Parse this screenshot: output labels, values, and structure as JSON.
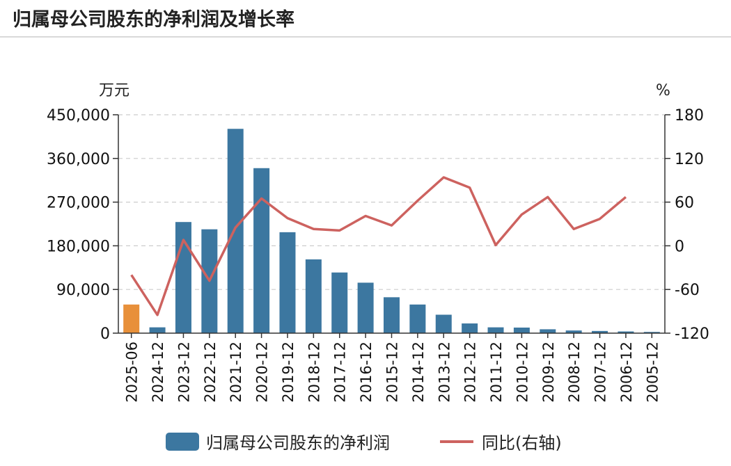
{
  "header": {
    "title": "归属母公司股东的净利润及增长率"
  },
  "chart_data": {
    "type": "bar+line",
    "title": "归属母公司股东的净利润及增长率",
    "categories": [
      "2025-06",
      "2024-12",
      "2023-12",
      "2022-12",
      "2021-12",
      "2020-12",
      "2019-12",
      "2018-12",
      "2017-12",
      "2016-12",
      "2015-12",
      "2014-12",
      "2013-12",
      "2012-12",
      "2011-12",
      "2010-12",
      "2009-12",
      "2008-12",
      "2007-12",
      "2006-12",
      "2005-12"
    ],
    "left_axis": {
      "unit": "万元",
      "min": 0,
      "max": 450000,
      "ticks": [
        0,
        90000,
        180000,
        270000,
        360000,
        450000
      ],
      "tick_labels": [
        "0",
        "90,000",
        "180,000",
        "270,000",
        "360,000",
        "450,000"
      ]
    },
    "right_axis": {
      "unit": "%",
      "min": -120,
      "max": 180,
      "ticks": [
        -120,
        -60,
        0,
        60,
        120,
        180
      ],
      "tick_labels": [
        "-120",
        "-60",
        "0",
        "60",
        "120",
        "180"
      ]
    },
    "series": [
      {
        "name": "归属母公司股东的净利润",
        "type": "bar",
        "axis": "left",
        "color": "#3c77a0",
        "highlight_color": "#e8903a",
        "highlight_index": 0,
        "values": [
          59000,
          12000,
          229000,
          214000,
          421000,
          340000,
          208000,
          152000,
          125000,
          104000,
          74000,
          59000,
          38000,
          20000,
          12000,
          11500,
          8000,
          5500,
          4500,
          3500,
          2500
        ]
      },
      {
        "name": "同比(右轴)",
        "type": "line",
        "axis": "right",
        "color": "#cd625f",
        "values": [
          -40,
          -95,
          8,
          -48,
          25,
          65,
          38,
          23,
          21,
          41,
          28,
          62,
          94,
          80,
          1,
          43,
          67,
          23,
          37,
          67,
          null
        ]
      }
    ],
    "legend": {
      "position": "bottom",
      "items": [
        "归属母公司股东的净利润",
        "同比(右轴)"
      ]
    },
    "grid": true
  }
}
